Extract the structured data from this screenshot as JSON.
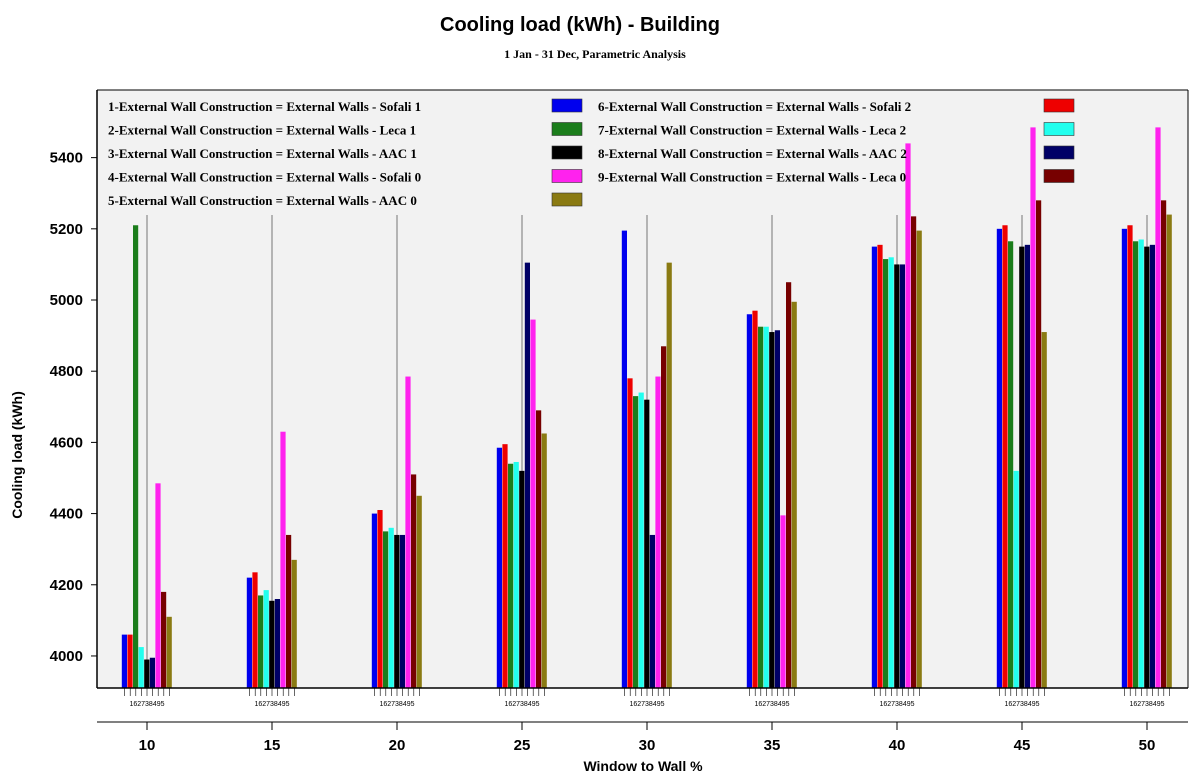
{
  "chart_data": {
    "type": "bar",
    "title": "Cooling load (kWh) - Building",
    "subtitle": "1 Jan - 31 Dec, Parametric Analysis",
    "xlabel": "Window to Wall %",
    "ylabel": "Cooling load (kWh)",
    "ylim": [
      3910,
      5590
    ],
    "yticks": [
      "4000",
      "4200",
      "4400",
      "4600",
      "4800",
      "5000",
      "5200",
      "5400"
    ],
    "categories": [
      "10",
      "15",
      "20",
      "25",
      "30",
      "35",
      "40",
      "45",
      "50"
    ],
    "bar_order_label": "162738495",
    "series": [
      {
        "name": "1-External Wall Construction = External Walls - Sofali 1",
        "color": "#0000ee",
        "values": [
          4060,
          4220,
          4400,
          4585,
          5195,
          4960,
          5150,
          5200,
          5200
        ]
      },
      {
        "name": "6-External Wall Construction = External Walls - Sofali 2",
        "color": "#ee0000",
        "values": [
          4060,
          4235,
          4410,
          4595,
          4780,
          4970,
          5155,
          5210,
          5210
        ]
      },
      {
        "name": "2-External Wall Construction = External Walls - Leca 1",
        "color": "#1b7d1b",
        "values": [
          5210,
          4170,
          4350,
          4540,
          4730,
          4925,
          5115,
          5165,
          5165
        ]
      },
      {
        "name": "7-External Wall Construction = External Walls - Leca 2",
        "color": "#22ffee",
        "values": [
          4025,
          4185,
          4360,
          4545,
          4740,
          4925,
          5120,
          4520,
          5170
        ]
      },
      {
        "name": "3-External Wall Construction = External Walls - AAC 1",
        "color": "#000000",
        "values": [
          3990,
          4155,
          4340,
          4520,
          4720,
          4910,
          5100,
          5150,
          5150
        ]
      },
      {
        "name": "8-External Wall Construction = External Walls - AAC 2",
        "color": "#000066",
        "values": [
          3995,
          4160,
          4340,
          5105,
          4340,
          4915,
          5100,
          5155,
          5155
        ]
      },
      {
        "name": "4-External Wall Construction = External Walls - Sofali 0",
        "color": "#ff22ee",
        "values": [
          4485,
          4630,
          4785,
          4945,
          4785,
          4395,
          5440,
          5485,
          5485
        ]
      },
      {
        "name": "9-External Wall Construction = External Walls - Leca 0",
        "color": "#770000",
        "values": [
          4180,
          4340,
          4510,
          4690,
          4870,
          5050,
          5235,
          5280,
          5280
        ]
      },
      {
        "name": "5-External Wall Construction = External Walls - AAC 0",
        "color": "#8a7a12",
        "values": [
          4110,
          4270,
          4450,
          4625,
          5105,
          4995,
          5195,
          4910,
          5240
        ]
      }
    ],
    "legend_left": [
      0,
      2,
      4,
      6,
      8
    ],
    "legend_right": [
      1,
      3,
      5,
      7
    ],
    "grid": "vertical",
    "legend": "top"
  }
}
